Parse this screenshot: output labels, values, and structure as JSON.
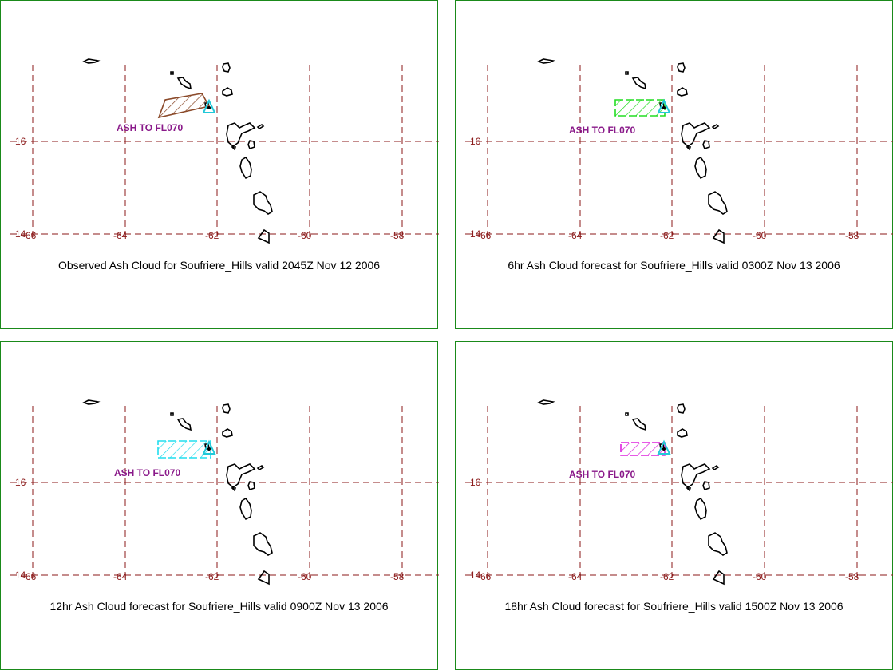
{
  "colors": {
    "grid": "#8b1a1a",
    "tick_label": "#8b1a1a",
    "coast": "#000000",
    "volcano": "#22c8d8",
    "ash_label": "#8a1a8a",
    "panel_border": "#1a8a1a"
  },
  "axes": {
    "lon_ticks": [
      "-66",
      "-64",
      "-62",
      "-60",
      "-58"
    ],
    "lat_ticks": [
      "16",
      "14"
    ]
  },
  "panels": [
    {
      "caption": "Observed Ash Cloud for Soufriere_Hills valid 2045Z Nov 12 2006",
      "ash_label": "ASH TO FL070",
      "cloud_color": "#8b4a2a",
      "cloud_style": "polygon-hatched"
    },
    {
      "caption": "6hr Ash Cloud forecast for Soufriere_Hills valid 0300Z Nov 13 2006",
      "ash_label": "ASH TO FL070",
      "cloud_color": "#22dd22",
      "cloud_style": "band-hatched"
    },
    {
      "caption": "12hr Ash Cloud forecast for Soufriere_Hills valid 0900Z Nov 13 2006",
      "ash_label": "ASH TO FL070",
      "cloud_color": "#22ddee",
      "cloud_style": "band-hatched"
    },
    {
      "caption": "18hr Ash Cloud forecast for Soufriere_Hills valid 1500Z Nov 13 2006",
      "ash_label": "ASH TO FL070",
      "cloud_color": "#dd22dd",
      "cloud_style": "band-hatched"
    }
  ]
}
